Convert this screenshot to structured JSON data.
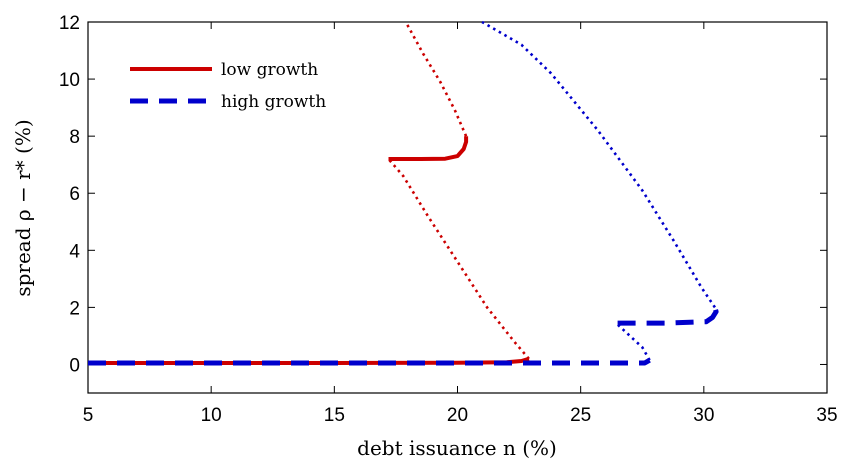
{
  "chart_data": {
    "type": "line",
    "title": "",
    "xlabel": "debt issuance n (%)",
    "ylabel": "spread ρ − r* (%)",
    "xlim": [
      5,
      35
    ],
    "ylim": [
      -1,
      12
    ],
    "xticks": [
      "5",
      "10",
      "15",
      "20",
      "25",
      "30",
      "35"
    ],
    "yticks": [
      "0",
      "2",
      "4",
      "6",
      "8",
      "10",
      "12"
    ],
    "grid": false,
    "legend_position": "top-left",
    "colors": {
      "low": "#cc0000",
      "high": "#0000cc"
    },
    "series": [
      {
        "name": "low growth",
        "style": "solid",
        "segments": [
          {
            "style": "solid",
            "points": [
              [
                5,
                0.05
              ],
              [
                10,
                0.05
              ],
              [
                15,
                0.05
              ],
              [
                20,
                0.06
              ],
              [
                22,
                0.08
              ],
              [
                22.6,
                0.12
              ],
              [
                22.9,
                0.2
              ]
            ]
          },
          {
            "style": "dotted",
            "points": [
              [
                22.9,
                0.2
              ],
              [
                22.3,
                0.8
              ],
              [
                21.2,
                2.0
              ],
              [
                20.0,
                3.6
              ],
              [
                18.8,
                5.2
              ],
              [
                17.8,
                6.6
              ],
              [
                17.2,
                7.2
              ]
            ]
          },
          {
            "style": "solid",
            "points": [
              [
                17.2,
                7.2
              ],
              [
                18.5,
                7.2
              ],
              [
                19.5,
                7.21
              ],
              [
                20.0,
                7.3
              ],
              [
                20.25,
                7.55
              ],
              [
                20.35,
                7.8
              ],
              [
                20.35,
                8.0
              ]
            ]
          },
          {
            "style": "dotted",
            "points": [
              [
                20.35,
                8.0
              ],
              [
                19.9,
                8.9
              ],
              [
                19.3,
                9.9
              ],
              [
                18.6,
                10.9
              ],
              [
                17.9,
                12.0
              ]
            ]
          }
        ]
      },
      {
        "name": "high growth",
        "style": "dashed",
        "segments": [
          {
            "style": "dashed",
            "points": [
              [
                5,
                0.05
              ],
              [
                15,
                0.05
              ],
              [
                22,
                0.05
              ],
              [
                27.6,
                0.05
              ],
              [
                27.8,
                0.15
              ]
            ]
          },
          {
            "style": "dotted",
            "points": [
              [
                27.8,
                0.15
              ],
              [
                27.5,
                0.6
              ],
              [
                27.0,
                1.0
              ],
              [
                26.5,
                1.4
              ]
            ]
          },
          {
            "style": "dashed",
            "points": [
              [
                26.5,
                1.45
              ],
              [
                28.5,
                1.45
              ],
              [
                30.1,
                1.5
              ],
              [
                30.35,
                1.65
              ],
              [
                30.5,
                1.85
              ],
              [
                30.45,
                2.0
              ]
            ]
          },
          {
            "style": "dotted",
            "points": [
              [
                30.45,
                2.0
              ],
              [
                29.9,
                2.7
              ],
              [
                28.8,
                4.3
              ],
              [
                27.5,
                6.1
              ],
              [
                25.7,
                8.2
              ],
              [
                23.8,
                10.2
              ],
              [
                22.6,
                11.2
              ],
              [
                21.0,
                12.0
              ]
            ]
          }
        ]
      }
    ]
  }
}
